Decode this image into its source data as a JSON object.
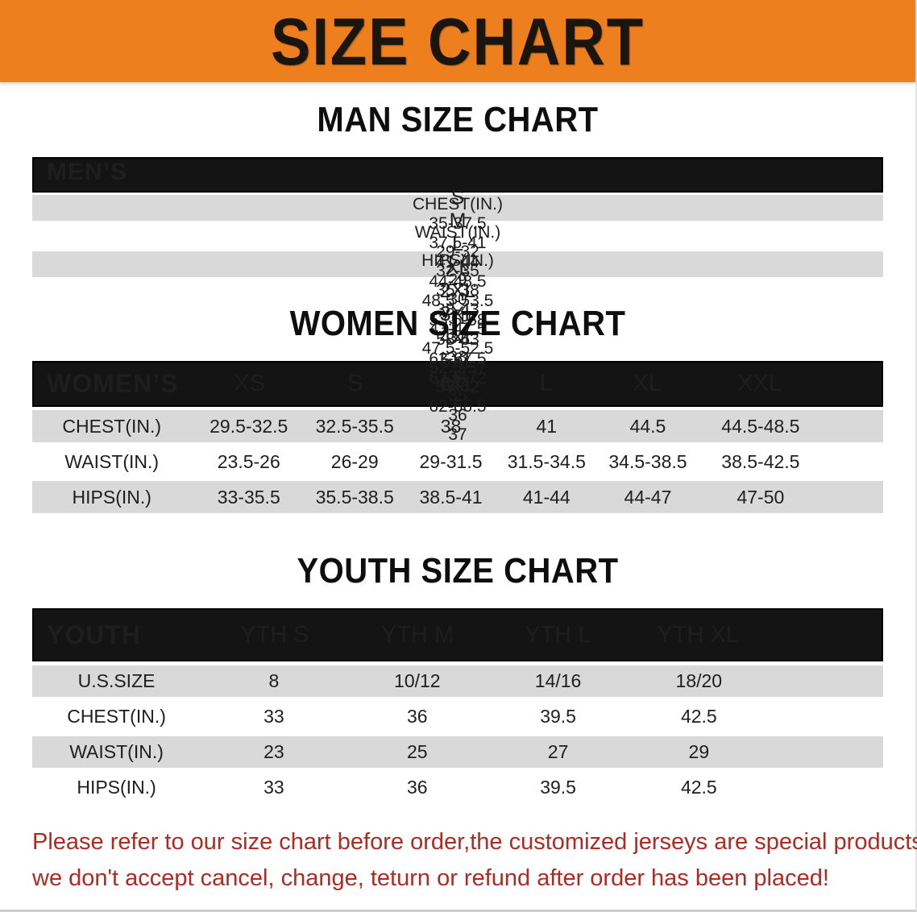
{
  "theme": {
    "banner_bg": "#ED7F1F",
    "header_bar": "#141414",
    "row_shade": "#D9D9D9",
    "notice_red": "#B02A23",
    "text_dark": "#111111"
  },
  "banner": {
    "title": "SIZE CHART"
  },
  "sections": {
    "men": {
      "heading": "MAN SIZE CHART",
      "table": {
        "label_header": "MEN’S",
        "columns": [
          "S",
          "M",
          "L",
          "XL",
          "2XL",
          "3XL",
          "4XL",
          "5XL",
          "6XL"
        ],
        "rows": [
          {
            "label": "CHEST(IN.)",
            "values": [
              "35-37.5",
              "37.5-41",
              "41-44",
              "44-48.5",
              "48.5-53.5",
              "53.5-58",
              "58-63",
              "63-67.5",
              "67.5-72"
            ]
          },
          {
            "label": "WAIST(IN.)",
            "values": [
              "29-32",
              "32-35",
              "35-38",
              "38-43",
              "43-47.5",
              "47.5-52.5",
              "52.5-57",
              "57-62",
              "62-66.5"
            ]
          },
          {
            "label": "HIPS(IN.)",
            "values": [
              "29",
              "30",
              "31",
              "32",
              "33",
              "34",
              "35",
              "36",
              "37"
            ]
          }
        ]
      }
    },
    "women": {
      "heading": "WOMEN SIZE CHART",
      "table": {
        "label_header": "WOMEN’S",
        "columns": [
          "XS",
          "S",
          "M",
          "L",
          "XL",
          "XXL"
        ],
        "rows": [
          {
            "label": "CHEST(IN.)",
            "values": [
              "29.5-32.5",
              "32.5-35.5",
              "38",
              "41",
              "44.5",
              "44.5-48.5"
            ]
          },
          {
            "label": "WAIST(IN.)",
            "values": [
              "23.5-26",
              "26-29",
              "29-31.5",
              "31.5-34.5",
              "34.5-38.5",
              "38.5-42.5"
            ]
          },
          {
            "label": "HIPS(IN.)",
            "values": [
              "33-35.5",
              "35.5-38.5",
              "38.5-41",
              "41-44",
              "44-47",
              "47-50"
            ]
          }
        ]
      }
    },
    "youth": {
      "heading": "YOUTH SIZE CHART",
      "table": {
        "label_header": "YOUTH",
        "columns": [
          "YTH S",
          "YTH M",
          "YTH L",
          "YTH XL"
        ],
        "rows": [
          {
            "label": "U.S.SIZE",
            "values": [
              "8",
              "10/12",
              "14/16",
              "18/20"
            ]
          },
          {
            "label": "CHEST(IN.)",
            "values": [
              "33",
              "36",
              "39.5",
              "42.5"
            ]
          },
          {
            "label": "WAIST(IN.)",
            "values": [
              "23",
              "25",
              "27",
              "29"
            ]
          },
          {
            "label": "HIPS(IN.)",
            "values": [
              "33",
              "36",
              "39.5",
              "42.5"
            ]
          }
        ]
      }
    }
  },
  "footer": {
    "line1": "Please refer to our size chart before order,the customized jerseys are special products,",
    "line2": "we don't accept cancel, change, teturn or refund after order has been placed!"
  }
}
